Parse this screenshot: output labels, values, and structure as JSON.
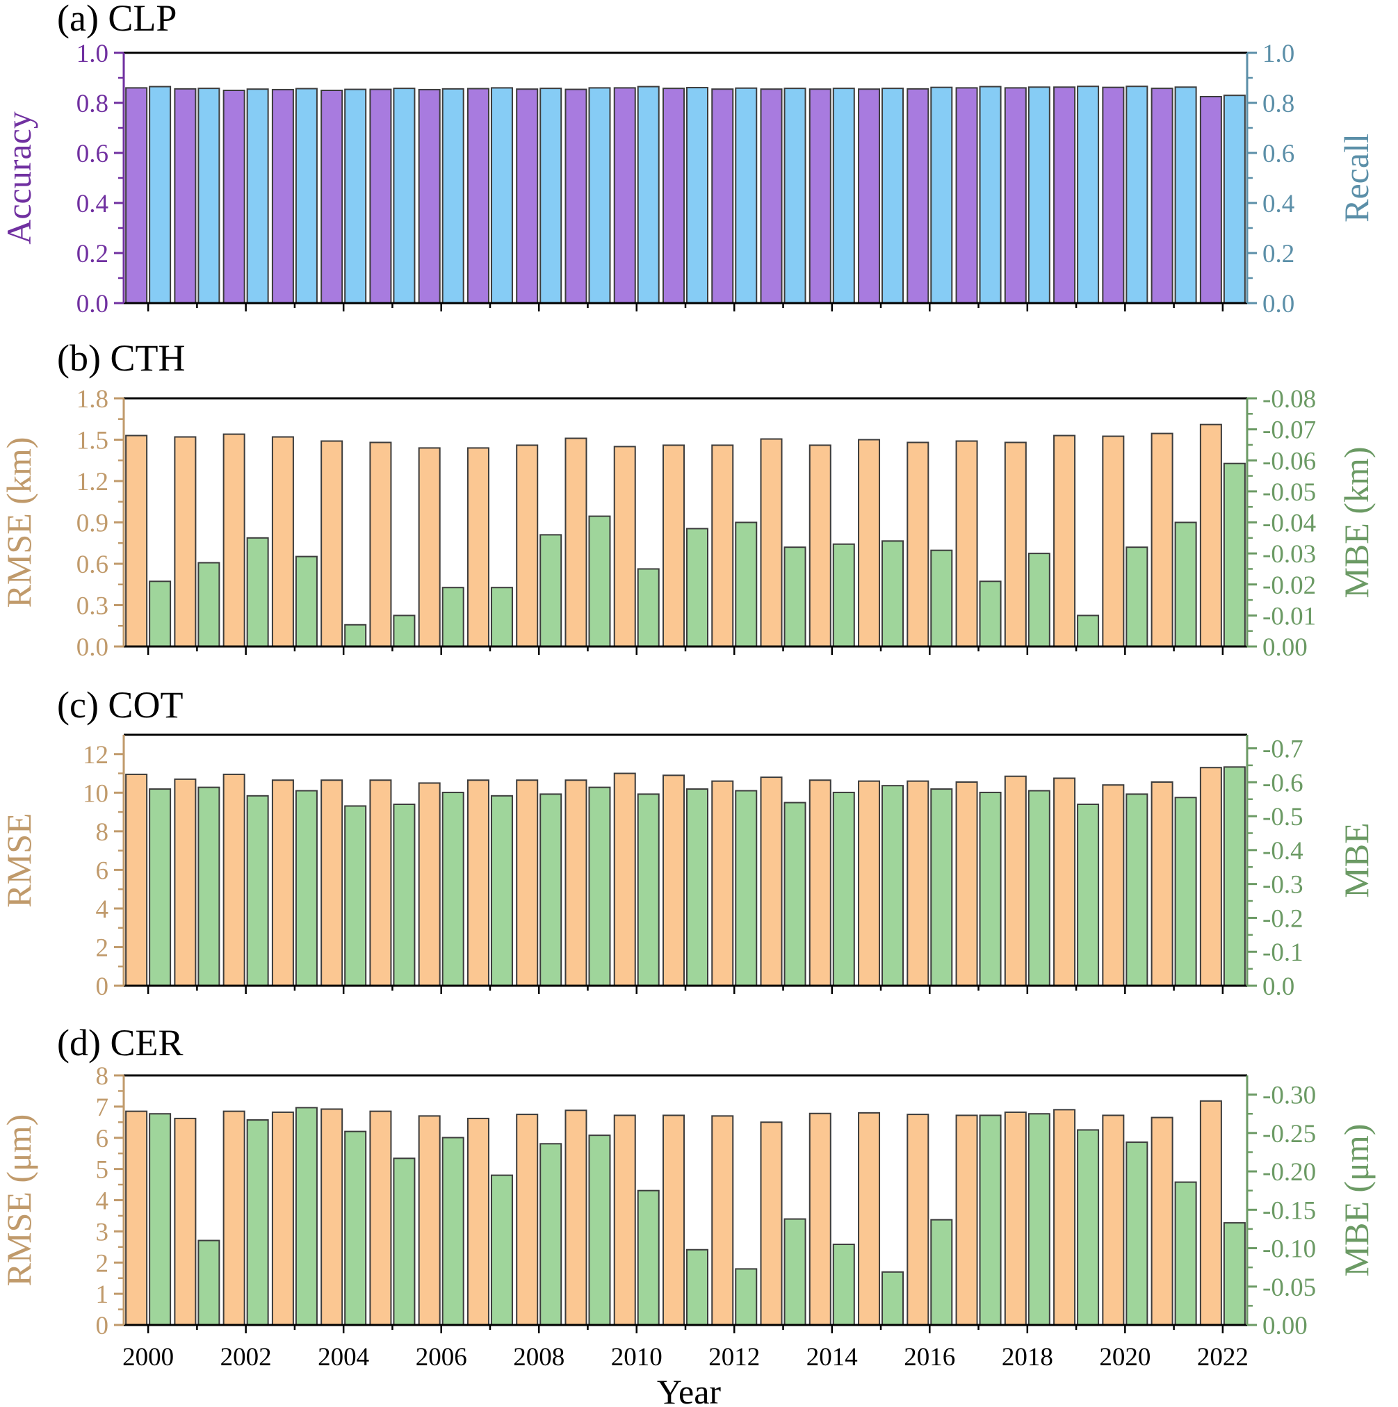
{
  "chart_data": {
    "type": "bar",
    "x": [
      2000,
      2001,
      2002,
      2003,
      2004,
      2005,
      2006,
      2007,
      2008,
      2009,
      2010,
      2011,
      2012,
      2013,
      2014,
      2015,
      2016,
      2017,
      2018,
      2019,
      2020,
      2021,
      2022
    ],
    "x_tick_labels": [
      "2000",
      "2002",
      "2004",
      "2006",
      "2008",
      "2010",
      "2012",
      "2014",
      "2016",
      "2018",
      "2020",
      "2022"
    ],
    "xlabel": "Year",
    "panels": [
      {
        "title": "(a) CLP",
        "left_axis": {
          "label": "Accuracy",
          "color": "#7030A0",
          "ylim": [
            0,
            1.0
          ],
          "ticks": [
            "0.0",
            "0.2",
            "0.4",
            "0.6",
            "0.8",
            "1.0"
          ]
        },
        "right_axis": {
          "label": "Recall",
          "color": "#5B8FA8",
          "ylim": [
            0,
            1.0
          ],
          "ticks": [
            "0.0",
            "0.2",
            "0.4",
            "0.6",
            "0.8",
            "1.0"
          ]
        },
        "series": [
          {
            "name": "Accuracy",
            "axis": "left",
            "color": "#A87BDF",
            "values": [
              0.86,
              0.856,
              0.85,
              0.853,
              0.85,
              0.854,
              0.853,
              0.857,
              0.855,
              0.854,
              0.86,
              0.858,
              0.855,
              0.855,
              0.855,
              0.855,
              0.856,
              0.86,
              0.86,
              0.863,
              0.862,
              0.858,
              0.825
            ]
          },
          {
            "name": "Recall",
            "axis": "right",
            "color": "#86CCF5",
            "values": [
              0.865,
              0.858,
              0.855,
              0.857,
              0.854,
              0.858,
              0.856,
              0.86,
              0.858,
              0.86,
              0.865,
              0.861,
              0.859,
              0.858,
              0.858,
              0.858,
              0.862,
              0.865,
              0.863,
              0.866,
              0.866,
              0.863,
              0.83
            ]
          }
        ]
      },
      {
        "title": "(b) CTH",
        "left_axis": {
          "label": "RMSE (km)",
          "color": "#C09A6B",
          "ylim": [
            0,
            1.8
          ],
          "ticks": [
            "0.0",
            "0.3",
            "0.6",
            "0.9",
            "1.2",
            "1.5",
            "1.8"
          ]
        },
        "right_axis": {
          "label": "MBE (km)",
          "color": "#6B9A64",
          "ylim": [
            0,
            -0.08
          ],
          "ticks": [
            "0.00",
            "-0.01",
            "-0.02",
            "-0.03",
            "-0.04",
            "-0.05",
            "-0.06",
            "-0.07",
            "-0.08"
          ]
        },
        "series": [
          {
            "name": "RMSE",
            "axis": "left",
            "color": "#FBC792",
            "values": [
              1.53,
              1.52,
              1.54,
              1.52,
              1.49,
              1.48,
              1.44,
              1.44,
              1.46,
              1.51,
              1.45,
              1.46,
              1.46,
              1.505,
              1.46,
              1.5,
              1.48,
              1.49,
              1.48,
              1.53,
              1.525,
              1.545,
              1.61
            ]
          },
          {
            "name": "MBE",
            "axis": "right",
            "color": "#9FD59B",
            "values": [
              -0.021,
              -0.027,
              -0.035,
              -0.029,
              -0.007,
              -0.01,
              -0.019,
              -0.019,
              -0.036,
              -0.042,
              -0.025,
              -0.038,
              -0.04,
              -0.032,
              -0.033,
              -0.034,
              -0.031,
              -0.021,
              -0.03,
              -0.01,
              -0.032,
              -0.04,
              -0.059
            ]
          }
        ]
      },
      {
        "title": "(c) COT",
        "left_axis": {
          "label": "RMSE",
          "color": "#C09A6B",
          "ylim": [
            0,
            13
          ],
          "ticks": [
            "0",
            "2",
            "4",
            "6",
            "8",
            "10",
            "12"
          ]
        },
        "right_axis": {
          "label": "MBE",
          "color": "#6B9A64",
          "ylim": [
            0,
            -0.74
          ],
          "ticks": [
            "0.0",
            "-0.1",
            "-0.2",
            "-0.3",
            "-0.4",
            "-0.5",
            "-0.6",
            "-0.7"
          ]
        },
        "series": [
          {
            "name": "RMSE",
            "axis": "left",
            "color": "#FBC792",
            "values": [
              10.95,
              10.7,
              10.95,
              10.65,
              10.65,
              10.65,
              10.5,
              10.65,
              10.65,
              10.65,
              11.0,
              10.9,
              10.6,
              10.8,
              10.65,
              10.6,
              10.6,
              10.55,
              10.85,
              10.75,
              10.4,
              10.55,
              11.3
            ]
          },
          {
            "name": "MBE",
            "axis": "right",
            "color": "#9FD59B",
            "values": [
              -0.58,
              -0.585,
              -0.56,
              -0.575,
              -0.53,
              -0.535,
              -0.57,
              -0.56,
              -0.565,
              -0.585,
              -0.565,
              -0.58,
              -0.575,
              -0.54,
              -0.57,
              -0.59,
              -0.58,
              -0.57,
              -0.575,
              -0.535,
              -0.565,
              -0.555,
              -0.645
            ]
          }
        ]
      },
      {
        "title": "(d) CER",
        "left_axis": {
          "label": "RMSE (μm)",
          "color": "#C09A6B",
          "ylim": [
            0,
            8
          ],
          "ticks": [
            "0",
            "1",
            "2",
            "3",
            "4",
            "5",
            "6",
            "7",
            "8"
          ]
        },
        "right_axis": {
          "label": "MBE (μm)",
          "color": "#6B9A64",
          "ylim": [
            0,
            -0.325
          ],
          "ticks": [
            "0.00",
            "-0.05",
            "-0.10",
            "-0.15",
            "-0.20",
            "-0.25",
            "-0.30"
          ]
        },
        "series": [
          {
            "name": "RMSE",
            "axis": "left",
            "color": "#FBC792",
            "values": [
              6.85,
              6.62,
              6.85,
              6.82,
              6.92,
              6.85,
              6.7,
              6.62,
              6.75,
              6.88,
              6.72,
              6.72,
              6.7,
              6.5,
              6.78,
              6.8,
              6.75,
              6.72,
              6.82,
              6.9,
              6.72,
              6.65,
              7.18
            ]
          },
          {
            "name": "MBE",
            "axis": "right",
            "color": "#9FD59B",
            "values": [
              -0.275,
              -0.11,
              -0.267,
              -0.283,
              -0.252,
              -0.217,
              -0.244,
              -0.195,
              -0.236,
              -0.247,
              -0.175,
              -0.098,
              -0.073,
              -0.138,
              -0.105,
              -0.069,
              -0.137,
              -0.273,
              -0.275,
              -0.254,
              -0.238,
              -0.186,
              -0.133
            ]
          }
        ]
      }
    ]
  }
}
